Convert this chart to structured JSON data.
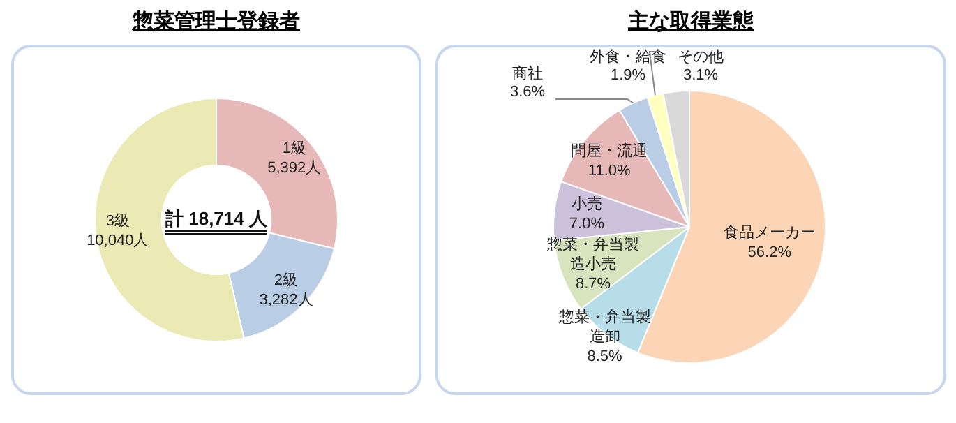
{
  "chart_data": [
    {
      "type": "donut",
      "title": "惣菜管理士登録者",
      "categories": [
        "1級",
        "2級",
        "3級"
      ],
      "values": [
        5392,
        3282,
        10040
      ],
      "colors": [
        "#e6b8b7",
        "#b9cde5",
        "#ebeab5"
      ],
      "value_labels": [
        "5,392人",
        "3,282人",
        "10,040人"
      ],
      "annotations": [
        "計 18,714 人"
      ]
    },
    {
      "type": "pie",
      "title": "主な取得業態",
      "categories": [
        "食品メーカー",
        "惣菜・弁当製造卸",
        "惣菜・弁当製造小売",
        "小売",
        "問屋・流通",
        "商社",
        "外食・給食",
        "その他"
      ],
      "values": [
        56.2,
        8.5,
        8.7,
        7.0,
        11.0,
        3.6,
        1.9,
        3.1
      ],
      "colors": [
        "#fbd5b5",
        "#b7dee8",
        "#d7e4bd",
        "#ccc1da",
        "#e6b9b8",
        "#b9cde5",
        "#ffffc0",
        "#d9d9d9"
      ],
      "value_labels": [
        "56.2%",
        "8.5%",
        "8.7%",
        "7.0%",
        "11.0%",
        "3.6%",
        "1.9%",
        "3.1%"
      ]
    }
  ]
}
